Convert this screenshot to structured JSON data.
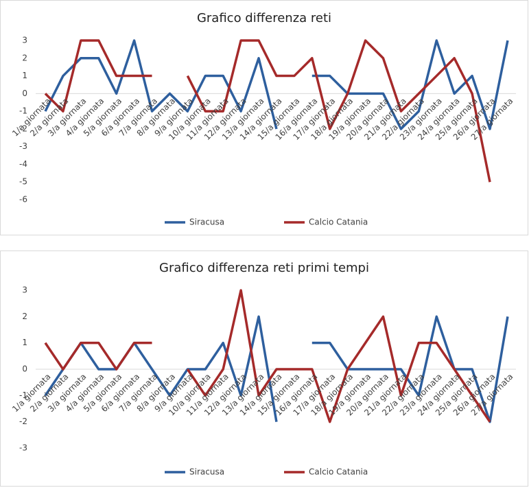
{
  "chart_data": [
    {
      "type": "line",
      "title": "Grafico differenza reti",
      "categories": [
        "1/a giornata",
        "2/a giornata",
        "3/a giornata",
        "4/a giornata",
        "5/a giornata",
        "6/a giornata",
        "7/a giornata",
        "8/a giornata",
        "9/a giornata",
        "10/a giornata",
        "11/a giornata",
        "12/a giornata",
        "13/a giornata",
        "14/a giornata",
        "15/a giornata",
        "16/a giornata",
        "17/a giornata",
        "18/a giornata",
        "19/a giornata",
        "20/a giornata",
        "21/a giornata",
        "22/a giornata",
        "23/a giornata",
        "24/a giornata",
        "25/a giornata",
        "26/a giornata",
        "27/a giornata"
      ],
      "series": [
        {
          "name": "Siracusa",
          "color": "#2e5f9e",
          "values": [
            -1,
            1,
            2,
            2,
            0,
            3,
            -1,
            0,
            -1,
            1,
            1,
            -1,
            2,
            -2,
            null,
            1,
            1,
            0,
            0,
            0,
            -2,
            -1,
            3,
            0,
            1,
            -2,
            3
          ]
        },
        {
          "name": "Calcio Catania",
          "color": "#a52a2a",
          "values": [
            0,
            -1,
            3,
            3,
            1,
            1,
            1,
            null,
            1,
            -1,
            -1,
            3,
            3,
            1,
            1,
            2,
            -2,
            0,
            3,
            2,
            -1,
            0,
            1,
            2,
            0,
            -5,
            null
          ]
        }
      ],
      "ylim": [
        -6,
        3
      ],
      "yticks": [
        -6,
        -5,
        -4,
        -3,
        -2,
        -1,
        0,
        1,
        2,
        3
      ],
      "legend": "bottom"
    },
    {
      "type": "line",
      "title": "Grafico differenza reti primi tempi",
      "categories": [
        "1/a giornata",
        "2/a giornata",
        "3/a giornata",
        "4/a giornata",
        "5/a giornata",
        "6/a giornata",
        "7/a giornata",
        "8/a giornata",
        "9/a giornata",
        "10/a giornata",
        "11/a giornata",
        "12/a giornata",
        "13/a giornata",
        "14/a giornata",
        "15/a giornata",
        "16/a giornata",
        "17/a giornata",
        "18/a giornata",
        "19/a giornata",
        "20/a giornata",
        "21/a giornata",
        "22/a giornata",
        "23/a giornata",
        "24/a giornata",
        "25/a giornata",
        "26/a giornata",
        "27/a giornata"
      ],
      "series": [
        {
          "name": "Siracusa",
          "color": "#2e5f9e",
          "values": [
            -1,
            0,
            1,
            0,
            0,
            1,
            0,
            -1,
            0,
            0,
            1,
            -1,
            2,
            -2,
            null,
            1,
            1,
            0,
            0,
            0,
            0,
            -1,
            2,
            0,
            0,
            -2,
            2
          ]
        },
        {
          "name": "Calcio Catania",
          "color": "#a52a2a",
          "values": [
            1,
            0,
            1,
            1,
            0,
            1,
            1,
            null,
            0,
            -1,
            0,
            3,
            -1,
            0,
            0,
            0,
            -2,
            0,
            1,
            2,
            -1,
            1,
            1,
            0,
            -1,
            -2,
            null
          ]
        }
      ],
      "ylim": [
        -3,
        3
      ],
      "yticks": [
        -3,
        -2,
        -1,
        0,
        1,
        2,
        3
      ],
      "legend": "bottom"
    }
  ]
}
